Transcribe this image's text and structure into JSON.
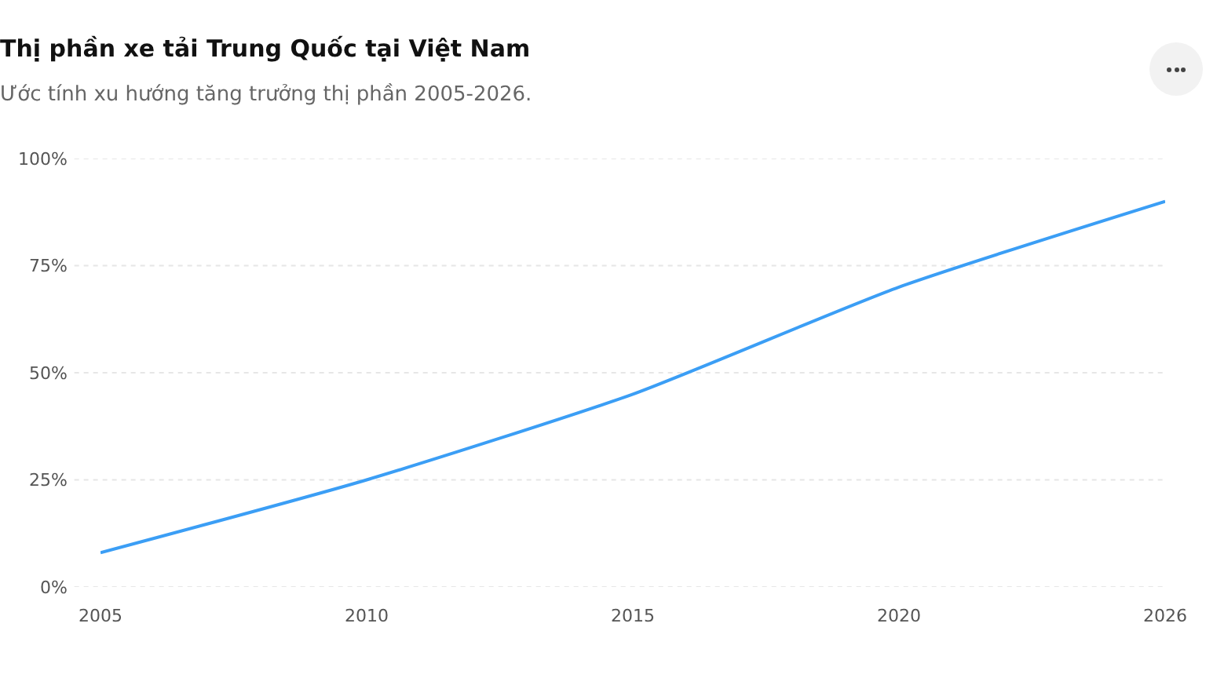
{
  "chart_data": {
    "type": "line",
    "title": "Thị phần xe tải Trung Quốc tại Việt Nam",
    "subtitle": "Ước tính xu hướng tăng trưởng thị phần 2005-2026.",
    "categories": [
      "2005",
      "2010",
      "2015",
      "2020",
      "2026"
    ],
    "series": [
      {
        "color": "#3b9ef5",
        "values": [
          8,
          25,
          45,
          70,
          90
        ]
      }
    ],
    "ylim": [
      0,
      100
    ],
    "yticks": [
      {
        "value": 0,
        "label": "0%"
      },
      {
        "value": 25,
        "label": "25%"
      },
      {
        "value": 50,
        "label": "50%"
      },
      {
        "value": 75,
        "label": "75%"
      },
      {
        "value": 100,
        "label": "100%"
      }
    ],
    "grid": "y",
    "marker": "none",
    "line_style": "solid"
  }
}
